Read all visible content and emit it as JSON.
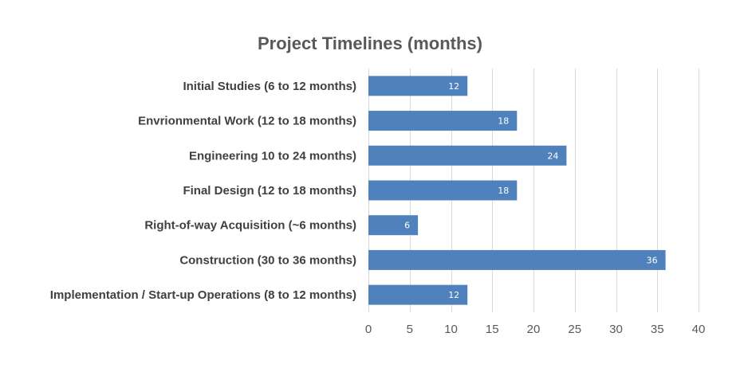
{
  "chart_data": {
    "type": "bar",
    "orientation": "horizontal",
    "title": "Project Timelines (months)",
    "categories": [
      "Initial Studies (6 to 12 months)",
      "Envrionmental Work (12 to 18 months)",
      "Engineering 10 to 24 months)",
      "Final Design (12 to 18 months)",
      "Right-of-way Acquisition (~6 months)",
      "Construction (30 to 36 months)",
      "Implementation / Start-up Operations (8 to 12 months)"
    ],
    "values": [
      12,
      18,
      24,
      18,
      6,
      36,
      12
    ],
    "xlim": [
      0,
      40
    ],
    "x_ticks": [
      0,
      5,
      10,
      15,
      20,
      25,
      30,
      35,
      40
    ],
    "grid": true,
    "legend": false,
    "bar_color": "#4f81bd"
  }
}
